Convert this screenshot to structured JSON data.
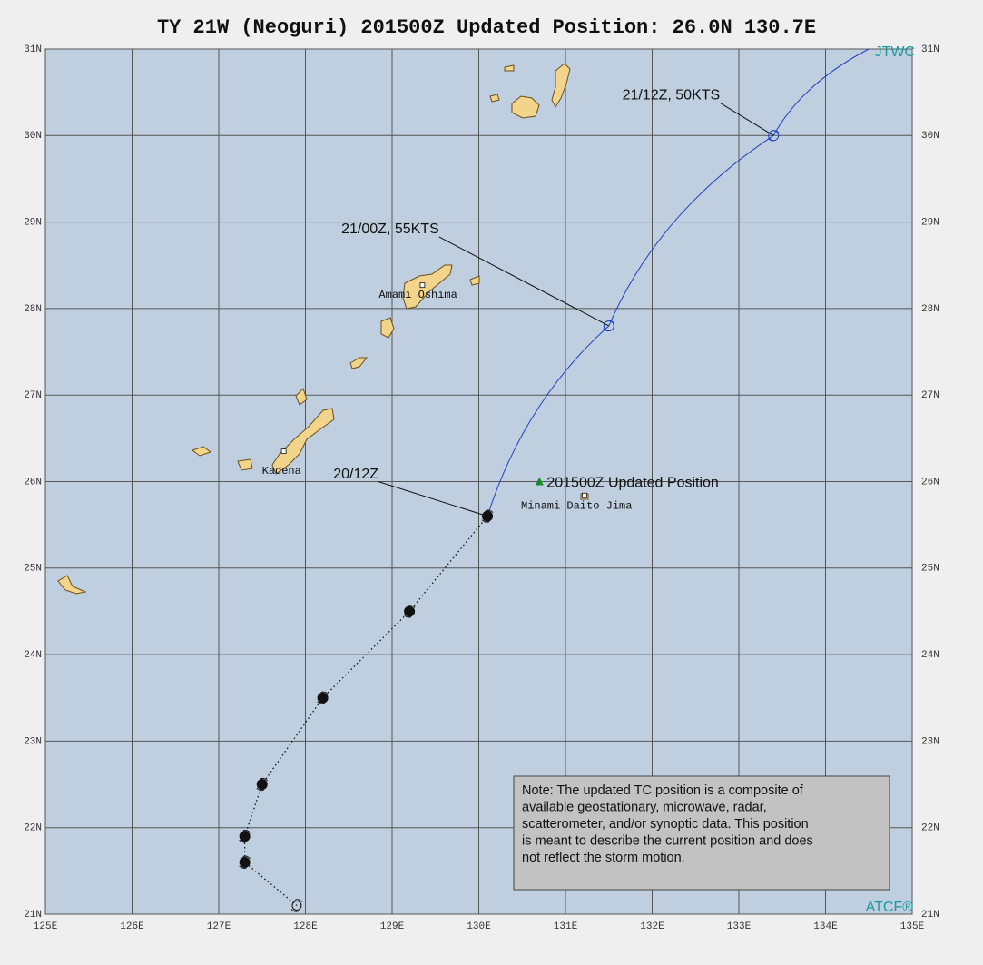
{
  "title": "TY 21W (Neoguri) 201500Z Updated Position: 26.0N 130.7E",
  "agency": "JTWC",
  "footer": "ATCF®",
  "map": {
    "lon_range": [
      125,
      135
    ],
    "lat_range": [
      21,
      31
    ],
    "lon_ticks": [
      {
        "value": 125,
        "label": "125E"
      },
      {
        "value": 126,
        "label": "126E"
      },
      {
        "value": 127,
        "label": "127E"
      },
      {
        "value": 128,
        "label": "128E"
      },
      {
        "value": 129,
        "label": "129E"
      },
      {
        "value": 130,
        "label": "130E"
      },
      {
        "value": 131,
        "label": "131E"
      },
      {
        "value": 132,
        "label": "132E"
      },
      {
        "value": 133,
        "label": "133E"
      },
      {
        "value": 134,
        "label": "134E"
      },
      {
        "value": 135,
        "label": "135E"
      }
    ],
    "lat_ticks": [
      {
        "value": 21,
        "label": "21N"
      },
      {
        "value": 22,
        "label": "22N"
      },
      {
        "value": 23,
        "label": "23N"
      },
      {
        "value": 24,
        "label": "24N"
      },
      {
        "value": 25,
        "label": "25N"
      },
      {
        "value": 26,
        "label": "26N"
      },
      {
        "value": 27,
        "label": "27N"
      },
      {
        "value": 28,
        "label": "28N"
      },
      {
        "value": 29,
        "label": "29N"
      },
      {
        "value": 30,
        "label": "30N"
      },
      {
        "value": 31,
        "label": "31N"
      }
    ]
  },
  "track": {
    "past": [
      {
        "lat": 25.6,
        "lon": 130.1,
        "label": "20/12Z"
      },
      {
        "lat": 24.5,
        "lon": 129.2
      },
      {
        "lat": 23.5,
        "lon": 128.2
      },
      {
        "lat": 22.5,
        "lon": 127.5
      },
      {
        "lat": 21.9,
        "lon": 127.3
      },
      {
        "lat": 21.6,
        "lon": 127.3
      },
      {
        "lat": 21.1,
        "lon": 127.9
      }
    ],
    "forecast": [
      {
        "lat": 27.8,
        "lon": 131.5,
        "label": "21/00Z,  55KTS"
      },
      {
        "lat": 30.0,
        "lon": 133.4,
        "label": "21/12Z,  50KTS"
      },
      {
        "lat": 31.0,
        "lon": 134.5
      }
    ]
  },
  "updated_position": {
    "lat": 26.0,
    "lon": 130.7,
    "label": "201500Z Updated Position"
  },
  "places": [
    {
      "name": "Amami Oshima",
      "lat": 28.27,
      "lon": 129.35
    },
    {
      "name": "Kadena",
      "lat": 26.35,
      "lon": 127.75
    },
    {
      "name": "Minami Daito Jima",
      "lat": 25.84,
      "lon": 131.22
    }
  ],
  "note": [
    "Note:  The updated TC position is a composite of",
    "available geostationary, microwave, radar,",
    "scatterometer, and/or synoptic data.   This position",
    "is meant to describe the current position and does",
    "not reflect the storm motion."
  ]
}
